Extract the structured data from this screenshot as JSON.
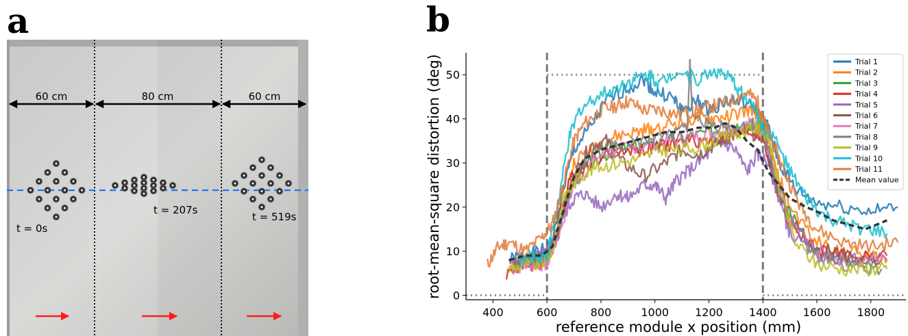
{
  "panels": {
    "a": {
      "letter": "a",
      "dimensions": [
        "60 cm",
        "80 cm",
        "60 cm"
      ],
      "time_labels": [
        "t = 0s",
        "t = 207s",
        "t = 519s"
      ]
    },
    "b": {
      "letter": "b"
    }
  },
  "colors": {
    "trial_1": "#1f77b4",
    "trial_2": "#ff7f0e",
    "trial_3": "#2ca02c",
    "trial_4": "#d62728",
    "trial_5": "#9467bd",
    "trial_6": "#8c564b",
    "trial_7": "#e377c2",
    "trial_8": "#7f7f7f",
    "trial_9": "#bcbd22",
    "trial_10": "#17becf",
    "trial_11": "#e07b39",
    "mean": "#333333",
    "dimension_arrow": "#000000",
    "direction_arrow": "#ff1a1a",
    "centerline": "#1f6fff"
  },
  "chart_data": {
    "type": "line",
    "title": "",
    "xlabel": "reference module x position (mm)",
    "ylabel": "root-mean-square distortion (deg)",
    "xlim": [
      300,
      1930
    ],
    "ylim": [
      -1,
      55
    ],
    "xticks": [
      400,
      600,
      800,
      1000,
      1200,
      1400,
      1600,
      1800
    ],
    "yticks": [
      0,
      10,
      20,
      30,
      40,
      50
    ],
    "grid": false,
    "legend_position": "top-right",
    "reference_lines": {
      "vertical_dashed_x": [
        600,
        1400
      ],
      "dotted_levels": [
        {
          "x": [
            300,
            600
          ],
          "y": 0
        },
        {
          "x": [
            600,
            1400
          ],
          "y": 50
        },
        {
          "x": [
            1400,
            1930
          ],
          "y": 0
        }
      ]
    },
    "series": [
      {
        "name": "Trial 1",
        "x": [
          460,
          520,
          580,
          620,
          660,
          700,
          760,
          820,
          900,
          960,
          1000,
          1060,
          1100,
          1160,
          1200,
          1260,
          1320,
          1380,
          1420,
          1460,
          1520,
          1600,
          1700,
          1800,
          1900
        ],
        "y": [
          8,
          9,
          10,
          12,
          24,
          33,
          38,
          44,
          47,
          49,
          46,
          45,
          42,
          44,
          42,
          44,
          44,
          42,
          38,
          30,
          24,
          21,
          20,
          19,
          20
        ]
      },
      {
        "name": "Trial 2",
        "x": [
          460,
          520,
          580,
          620,
          660,
          700,
          780,
          860,
          940,
          1000,
          1080,
          1160,
          1220,
          1300,
          1360,
          1400,
          1440,
          1500,
          1600,
          1700,
          1800,
          1860
        ],
        "y": [
          7,
          8,
          9,
          11,
          20,
          30,
          34,
          36,
          37,
          38,
          39,
          40,
          40,
          41,
          42,
          40,
          30,
          20,
          12,
          10,
          9,
          8
        ]
      },
      {
        "name": "Trial 3",
        "x": [
          480,
          540,
          600,
          640,
          700,
          780,
          860,
          960,
          1040,
          1120,
          1200,
          1280,
          1340,
          1400,
          1440,
          1500,
          1600,
          1700,
          1820
        ],
        "y": [
          7,
          8,
          8,
          14,
          26,
          31,
          33,
          34,
          35,
          36,
          37,
          38,
          39,
          38,
          28,
          18,
          10,
          8,
          7
        ]
      },
      {
        "name": "Trial 4",
        "x": [
          450,
          520,
          580,
          620,
          680,
          760,
          860,
          960,
          1040,
          1120,
          1200,
          1280,
          1360,
          1400,
          1440,
          1500,
          1600,
          1700,
          1860
        ],
        "y": [
          5,
          7,
          7,
          12,
          26,
          30,
          33,
          33,
          34,
          35,
          35,
          36,
          37,
          36,
          26,
          16,
          10,
          9,
          9
        ]
      },
      {
        "name": "Trial 5",
        "x": [
          460,
          520,
          580,
          620,
          660,
          700,
          740,
          800,
          860,
          900,
          960,
          1000,
          1040,
          1080,
          1120,
          1180,
          1240,
          1300,
          1340,
          1380,
          1420,
          1460,
          1500,
          1600,
          1700,
          1860
        ],
        "y": [
          7,
          8,
          9,
          11,
          18,
          22,
          23,
          20,
          23,
          22,
          25,
          25,
          22,
          26,
          28,
          31,
          35,
          33,
          28,
          32,
          30,
          22,
          14,
          9,
          8,
          8
        ]
      },
      {
        "name": "Trial 6",
        "x": [
          480,
          540,
          600,
          640,
          700,
          760,
          820,
          880,
          960,
          1040,
          1100,
          1160,
          1220,
          1280,
          1340,
          1400,
          1440,
          1500,
          1600,
          1700,
          1840
        ],
        "y": [
          7,
          8,
          9,
          15,
          27,
          34,
          35,
          30,
          27,
          30,
          33,
          32,
          34,
          36,
          37,
          36,
          27,
          17,
          11,
          9,
          8
        ]
      },
      {
        "name": "Trial 7",
        "x": [
          470,
          540,
          600,
          640,
          700,
          780,
          860,
          960,
          1060,
          1140,
          1220,
          1300,
          1360,
          1400,
          1440,
          1500,
          1600,
          1700,
          1860
        ],
        "y": [
          6,
          7,
          7,
          13,
          25,
          31,
          33,
          34,
          35,
          36,
          37,
          38,
          39,
          37,
          28,
          17,
          10,
          8,
          8
        ]
      },
      {
        "name": "Trial 8",
        "x": [
          480,
          540,
          600,
          640,
          700,
          780,
          860,
          960,
          1060,
          1120,
          1130,
          1140,
          1200,
          1280,
          1360,
          1400,
          1440,
          1500,
          1600,
          1700,
          1840
        ],
        "y": [
          7,
          8,
          9,
          14,
          27,
          33,
          34,
          35,
          36,
          38,
          53,
          40,
          39,
          38,
          39,
          38,
          28,
          17,
          9,
          7,
          6
        ]
      },
      {
        "name": "Trial 9",
        "x": [
          460,
          520,
          580,
          620,
          660,
          720,
          780,
          860,
          940,
          1020,
          1100,
          1180,
          1260,
          1320,
          1380,
          1420,
          1460,
          1520,
          1600,
          1700,
          1800,
          1860
        ],
        "y": [
          6,
          7,
          7,
          10,
          22,
          27,
          29,
          30,
          31,
          33,
          33,
          34,
          36,
          37,
          38,
          36,
          24,
          12,
          7,
          6,
          6,
          6
        ]
      },
      {
        "name": "Trial 10",
        "x": [
          500,
          560,
          600,
          640,
          680,
          720,
          780,
          860,
          920,
          980,
          1020,
          1080,
          1160,
          1220,
          1280,
          1320,
          1380,
          1400,
          1440,
          1500,
          1560,
          1620,
          1700,
          1780,
          1860
        ],
        "y": [
          8,
          9,
          9,
          20,
          35,
          42,
          45,
          47,
          49,
          50,
          48,
          51,
          49,
          51,
          49,
          46,
          41,
          38,
          36,
          28,
          22,
          18,
          16,
          15,
          14
        ]
      },
      {
        "name": "Trial 11",
        "x": [
          380,
          420,
          460,
          520,
          580,
          620,
          660,
          700,
          740,
          800,
          860,
          900,
          960,
          1020,
          1080,
          1160,
          1220,
          1280,
          1340,
          1380,
          1400,
          1440,
          1480,
          1540,
          1600,
          1700,
          1800,
          1900
        ],
        "y": [
          7,
          11,
          12,
          10,
          13,
          16,
          25,
          35,
          39,
          42,
          43,
          44,
          42,
          42,
          41,
          42,
          43,
          44,
          46,
          44,
          40,
          34,
          28,
          20,
          15,
          12,
          11,
          12
        ]
      },
      {
        "name": "Mean value",
        "x": [
          460,
          520,
          580,
          620,
          660,
          700,
          740,
          800,
          860,
          920,
          980,
          1040,
          1100,
          1160,
          1220,
          1260,
          1300,
          1340,
          1380,
          1420,
          1460,
          1500,
          1560,
          1600,
          1660,
          1720,
          1780,
          1860
        ],
        "y": [
          8,
          9,
          9,
          11,
          19,
          27,
          31,
          33,
          34,
          35,
          36,
          37,
          37,
          38,
          38,
          39,
          38,
          35,
          33,
          28,
          25,
          22,
          20,
          19,
          17,
          16,
          15,
          17
        ]
      }
    ]
  }
}
